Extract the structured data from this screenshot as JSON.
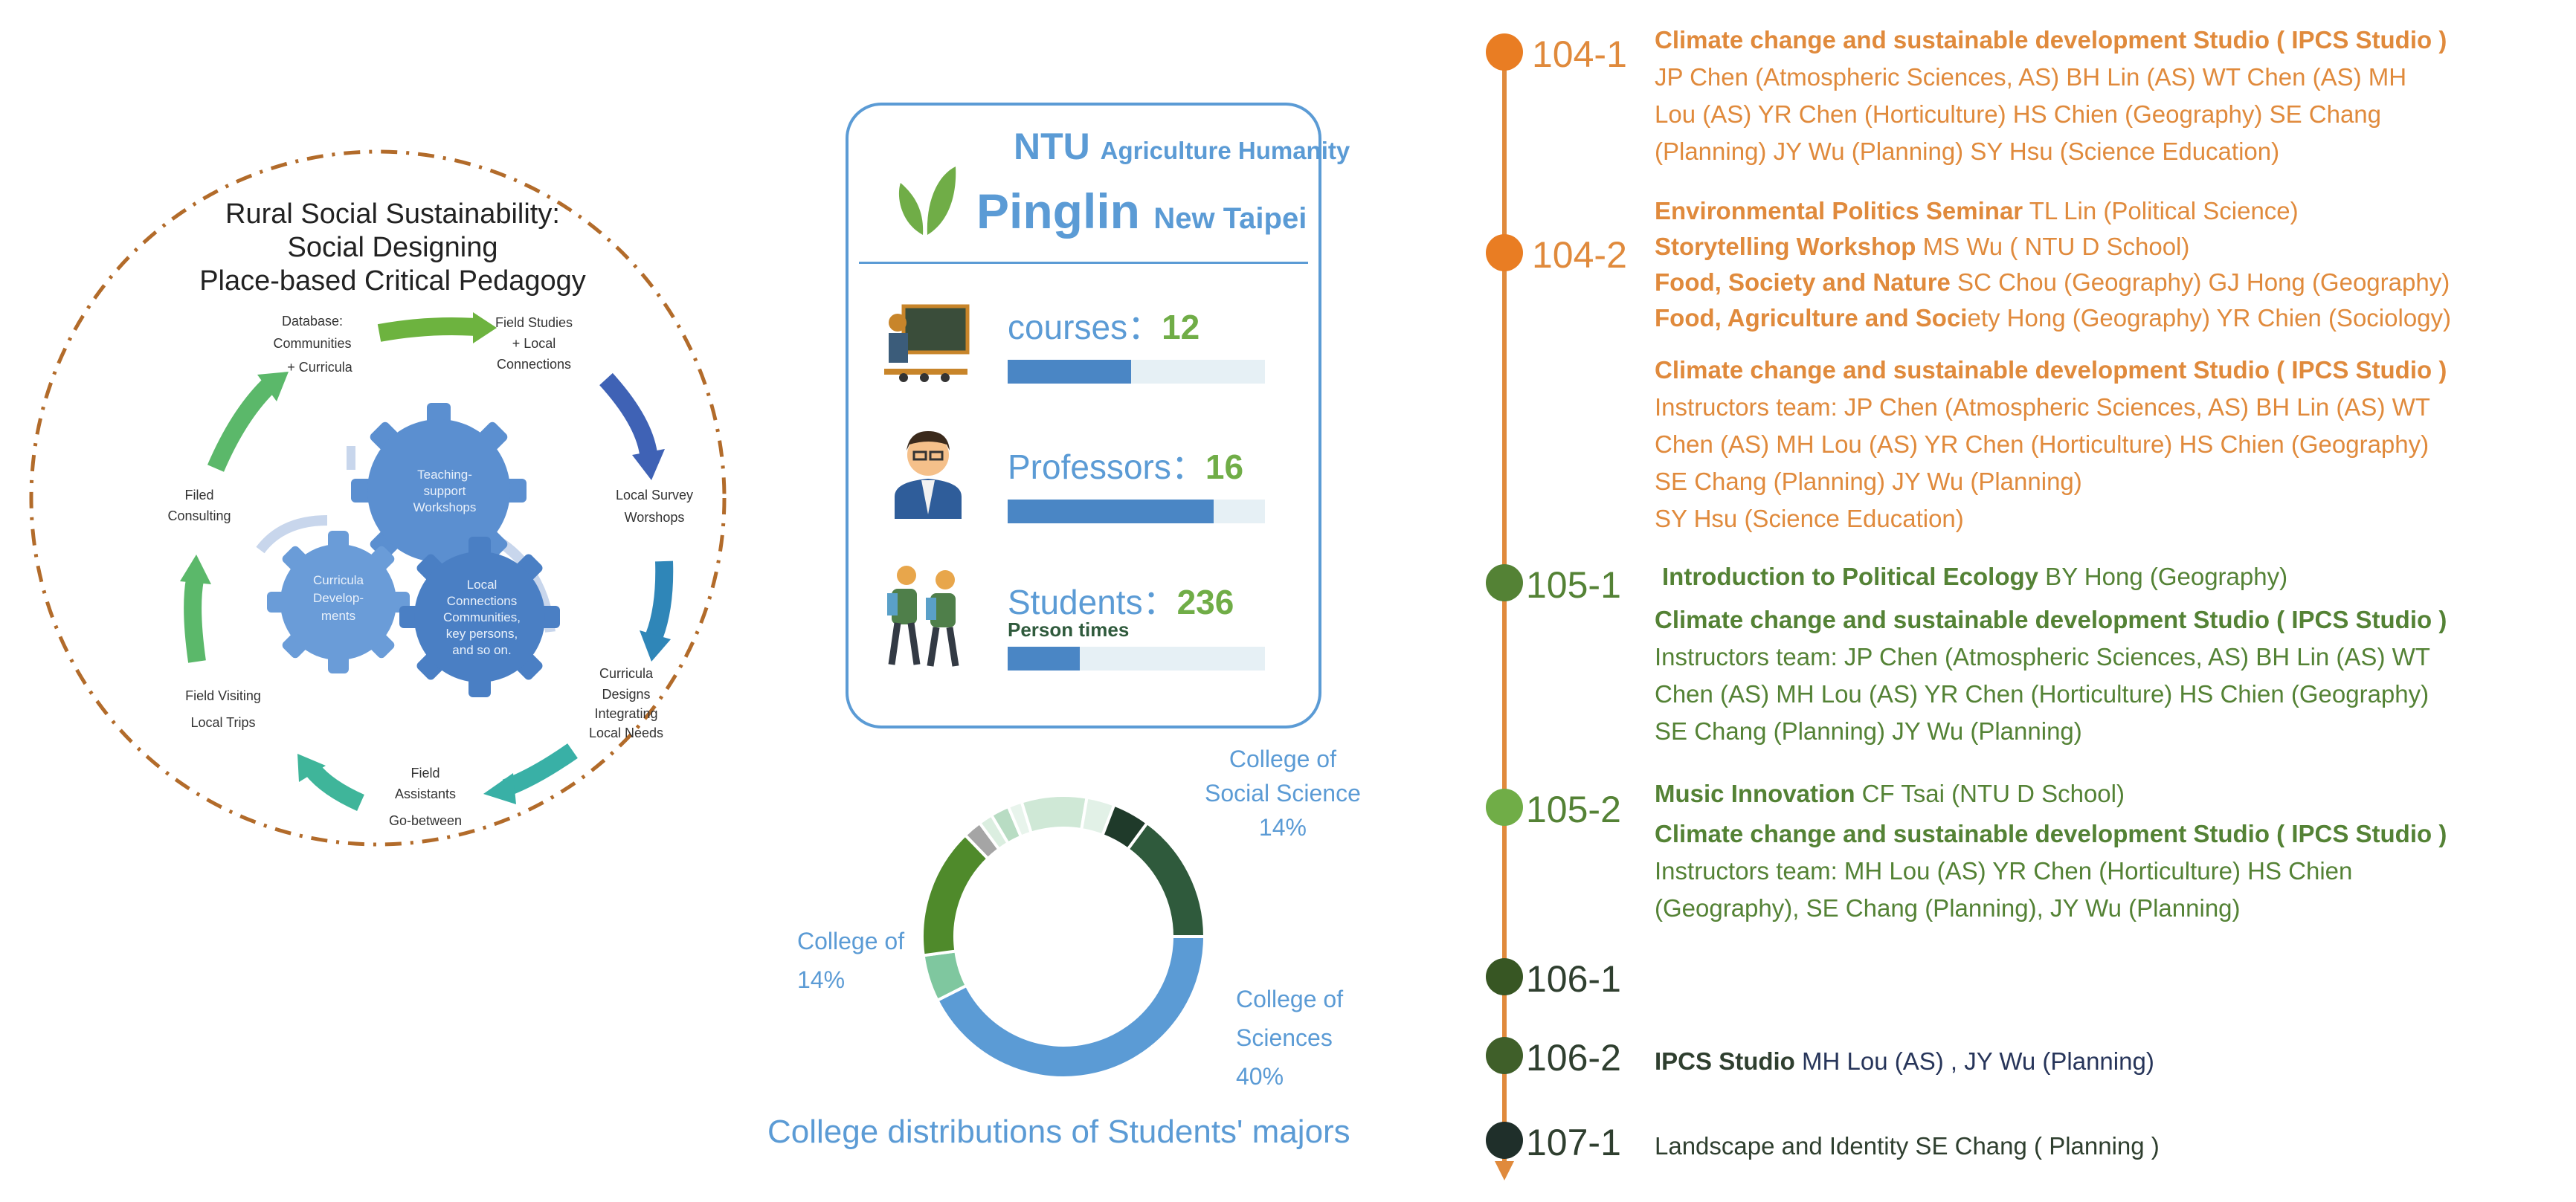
{
  "cycle": {
    "title_lines": [
      "Rural Social Sustainability:",
      "Social Designing",
      "Place-based Critical Pedagogy"
    ],
    "nodes": [
      {
        "lines": [
          "Database:",
          "Communities",
          "+ Curricula"
        ]
      },
      {
        "lines": [
          "Field Studies",
          "+ Local",
          "Connections"
        ]
      },
      {
        "lines": [
          "Local Survey",
          "Worshops"
        ]
      },
      {
        "lines": [
          "Curricula",
          "Designs",
          "Integrating",
          "Local Needs"
        ]
      },
      {
        "lines": [
          "Field",
          "Assistants",
          "Go-between"
        ]
      },
      {
        "lines": [
          "Field Visiting",
          "Local Trips"
        ]
      },
      {
        "lines": [
          "Filed",
          "Consulting"
        ]
      }
    ],
    "gears": [
      {
        "lines": [
          "Teaching-",
          "support",
          "Workshops"
        ]
      },
      {
        "lines": [
          "Curricula",
          "Develop-",
          "ments"
        ]
      },
      {
        "lines": [
          "Local",
          "Connections",
          "Communities,",
          "key persons,",
          "and so on."
        ]
      }
    ]
  },
  "card": {
    "org": "NTU",
    "org_sub": "Agriculture Humanity",
    "place": "Pinglin",
    "place_sub": "New Taipei",
    "stats": [
      {
        "label": "courses",
        "value": "12",
        "sub": "",
        "bar": 0.48,
        "icon": "teacher-icon"
      },
      {
        "label": "Professors",
        "value": "16",
        "sub": "",
        "bar": 0.8,
        "icon": "professor-icon"
      },
      {
        "label": "Students",
        "value": "236",
        "sub": "Person times",
        "bar": 0.28,
        "icon": "students-icon"
      }
    ],
    "separator": "："
  },
  "donut": {
    "title": "College distributions of Students' majors",
    "labels": [
      {
        "lines": [
          "College of",
          "Social Science",
          "14%"
        ],
        "key": "social"
      },
      {
        "lines": [
          "College of",
          "14%"
        ],
        "key": "unnamed"
      },
      {
        "lines": [
          "College of",
          "Sciences",
          "40%"
        ],
        "key": "sciences"
      }
    ]
  },
  "chart_data": {
    "type": "pie",
    "donut": true,
    "title": "College distributions of Students' majors",
    "slices": [
      {
        "label": "College of Sciences",
        "value": 40,
        "color": "#5b9bd5"
      },
      {
        "label": "",
        "value": 5,
        "color": "#7fc79f"
      },
      {
        "label": "College of",
        "value": 14,
        "color": "#4f8a2b"
      },
      {
        "label": "",
        "value": 2,
        "color": "#a5a5a5"
      },
      {
        "label": "",
        "value": 1.5,
        "color": "#dbeee0"
      },
      {
        "label": "",
        "value": 2,
        "color": "#b8dcc3"
      },
      {
        "label": "",
        "value": 1.5,
        "color": "#e8f4ec"
      },
      {
        "label": "",
        "value": 7,
        "color": "#cfe8d6"
      },
      {
        "label": "",
        "value": 3,
        "color": "#e2f1e7"
      },
      {
        "label": "",
        "value": 4,
        "color": "#1f3a2a"
      },
      {
        "label": "College of Social Science",
        "value": 14,
        "color": "#2f5a3c"
      }
    ]
  },
  "timeline": {
    "terms": [
      {
        "id": "104-1",
        "color": "#e97d23"
      },
      {
        "id": "104-2",
        "color": "#e97d23"
      },
      {
        "id": "105-1",
        "color": "#548235"
      },
      {
        "id": "105-2",
        "color": "#70ad47"
      },
      {
        "id": "106-1",
        "color": "#375623"
      },
      {
        "id": "106-2",
        "color": "#3f5f29"
      },
      {
        "id": "107-1",
        "color": "#1f2f2a"
      }
    ],
    "lines": [
      {
        "bold": "Climate change and sustainable development Studio ( IPCS  Studio )",
        "text": ""
      },
      {
        "bold": "",
        "text": "JP Chen (Atmospheric Sciences, AS) BH Lin (AS) WT Chen (AS) MH"
      },
      {
        "bold": "",
        "text": "Lou (AS) YR Chen (Horticulture) HS Chien (Geography) SE Chang"
      },
      {
        "bold": "",
        "text": "(Planning) JY Wu (Planning) SY Hsu (Science Education)"
      },
      {
        "bold": "Environmental Politics Seminar",
        "text": " TL Lin (Political Science)"
      },
      {
        "bold": "Storytelling Workshop",
        "text": " MS Wu ( NTU D School)"
      },
      {
        "bold": "Food, Society and Nature",
        "text": " SC Chou (Geography) GJ Hong (Geography)"
      },
      {
        "bold": "Food, Agriculture and Soci",
        "text": "ety Hong (Geography)  YR Chien (Sociology)"
      },
      {
        "bold": "Climate change and sustainable development Studio ( IPCS  Studio )",
        "text": ""
      },
      {
        "bold": "",
        "text": "Instructors team: JP Chen (Atmospheric Sciences, AS) BH Lin (AS) WT"
      },
      {
        "bold": "",
        "text": "Chen (AS) MH Lou (AS) YR Chen (Horticulture) HS Chien (Geography)"
      },
      {
        "bold": "",
        "text": "SE Chang (Planning) JY Wu (Planning)"
      },
      {
        "bold": "",
        "text": "SY Hsu (Science Education)"
      },
      {
        "bold": "Introduction to Political Ecology",
        "text": " BY Hong (Geography)"
      },
      {
        "bold": "Climate change and sustainable development Studio ( IPCS  Studio )",
        "text": ""
      },
      {
        "bold": "",
        "text": "Instructors team: JP Chen (Atmospheric Sciences, AS) BH Lin (AS) WT"
      },
      {
        "bold": "",
        "text": "Chen (AS) MH Lou (AS) YR Chen (Horticulture) HS Chien (Geography)"
      },
      {
        "bold": "",
        "text": "SE Chang (Planning) JY Wu (Planning)"
      },
      {
        "bold": "Music Innovation",
        "text": " CF Tsai (NTU D School)"
      },
      {
        "bold": "Climate change and sustainable development Studio ( IPCS  Studio )",
        "text": ""
      },
      {
        "bold": "",
        "text": "Instructors team: MH Lou (AS) YR Chen (Horticulture) HS Chien"
      },
      {
        "bold": "",
        "text": "(Geography), SE Chang (Planning), JY Wu (Planning)"
      },
      {
        "bold": "IPCS Studio",
        "text": "      MH Lou (AS) , JY Wu (Planning)"
      },
      {
        "bold": "",
        "text": "Landscape and Identity    SE Chang ( Planning )"
      }
    ]
  }
}
